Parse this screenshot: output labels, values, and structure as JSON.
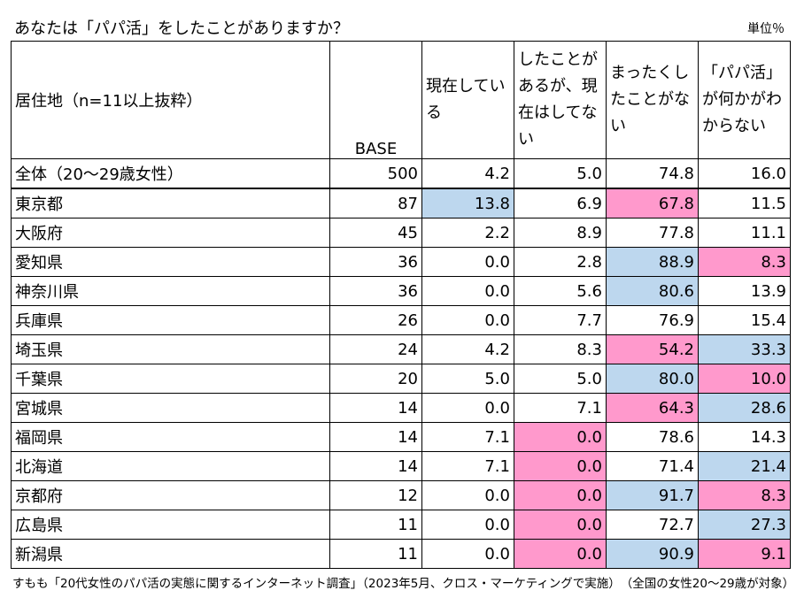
{
  "title": "あなたは「パパ活」をしたことがありますか？",
  "unit": "単位％",
  "headers": {
    "region": "居住地（n=11以上抜粋）",
    "base": "BASE",
    "c1": "現在している",
    "c2": "したことがあるが、現在はしてない",
    "c3": "まったくしたことがない",
    "c4": "「パパ活」が何かがわからない"
  },
  "colors": {
    "blue": "#bdd7ee",
    "pink": "#ff99cc"
  },
  "rows": [
    {
      "region": "全体（20～29歳女性）",
      "base": "500",
      "c1": "4.2",
      "c2": "5.0",
      "c3": "74.8",
      "c4": "16.0",
      "hl": [
        "",
        "",
        "",
        ""
      ]
    },
    {
      "region": "東京都",
      "base": "87",
      "c1": "13.8",
      "c2": "6.9",
      "c3": "67.8",
      "c4": "11.5",
      "hl": [
        "blue",
        "",
        "pink",
        ""
      ]
    },
    {
      "region": "大阪府",
      "base": "45",
      "c1": "2.2",
      "c2": "8.9",
      "c3": "77.8",
      "c4": "11.1",
      "hl": [
        "",
        "",
        "",
        ""
      ]
    },
    {
      "region": "愛知県",
      "base": "36",
      "c1": "0.0",
      "c2": "2.8",
      "c3": "88.9",
      "c4": "8.3",
      "hl": [
        "",
        "",
        "blue",
        "pink"
      ]
    },
    {
      "region": "神奈川県",
      "base": "36",
      "c1": "0.0",
      "c2": "5.6",
      "c3": "80.6",
      "c4": "13.9",
      "hl": [
        "",
        "",
        "blue",
        ""
      ]
    },
    {
      "region": "兵庫県",
      "base": "26",
      "c1": "0.0",
      "c2": "7.7",
      "c3": "76.9",
      "c4": "15.4",
      "hl": [
        "",
        "",
        "",
        ""
      ]
    },
    {
      "region": "埼玉県",
      "base": "24",
      "c1": "4.2",
      "c2": "8.3",
      "c3": "54.2",
      "c4": "33.3",
      "hl": [
        "",
        "",
        "pink",
        "blue"
      ]
    },
    {
      "region": "千葉県",
      "base": "20",
      "c1": "5.0",
      "c2": "5.0",
      "c3": "80.0",
      "c4": "10.0",
      "hl": [
        "",
        "",
        "blue",
        "pink"
      ]
    },
    {
      "region": "宮城県",
      "base": "14",
      "c1": "0.0",
      "c2": "7.1",
      "c3": "64.3",
      "c4": "28.6",
      "hl": [
        "",
        "",
        "pink",
        "blue"
      ]
    },
    {
      "region": "福岡県",
      "base": "14",
      "c1": "7.1",
      "c2": "0.0",
      "c3": "78.6",
      "c4": "14.3",
      "hl": [
        "",
        "pink",
        "",
        ""
      ]
    },
    {
      "region": "北海道",
      "base": "14",
      "c1": "7.1",
      "c2": "0.0",
      "c3": "71.4",
      "c4": "21.4",
      "hl": [
        "",
        "pink",
        "",
        "blue"
      ]
    },
    {
      "region": "京都府",
      "base": "12",
      "c1": "0.0",
      "c2": "0.0",
      "c3": "91.7",
      "c4": "8.3",
      "hl": [
        "",
        "pink",
        "blue",
        "pink"
      ]
    },
    {
      "region": "広島県",
      "base": "11",
      "c1": "0.0",
      "c2": "0.0",
      "c3": "72.7",
      "c4": "27.3",
      "hl": [
        "",
        "pink",
        "",
        "blue"
      ]
    },
    {
      "region": "新潟県",
      "base": "11",
      "c1": "0.0",
      "c2": "0.0",
      "c3": "90.9",
      "c4": "9.1",
      "hl": [
        "",
        "pink",
        "blue",
        "pink"
      ]
    }
  ],
  "footer": "すもも「20代女性のパパ活の実態に関するインターネット調査」（2023年5月、クロス・マーケティングで実施）　（全国の女性20～29歳が対象）"
}
